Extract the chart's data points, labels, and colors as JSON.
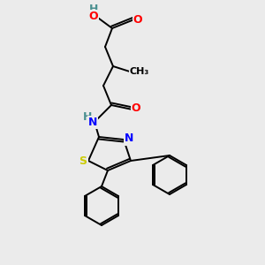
{
  "bg_color": "#ebebeb",
  "atom_colors": {
    "C": "#000000",
    "H": "#4a9090",
    "O": "#ff0000",
    "N": "#0000ff",
    "S": "#cccc00"
  },
  "bond_color": "#000000",
  "bond_width": 1.4,
  "figsize": [
    3.0,
    3.0
  ],
  "dpi": 100
}
